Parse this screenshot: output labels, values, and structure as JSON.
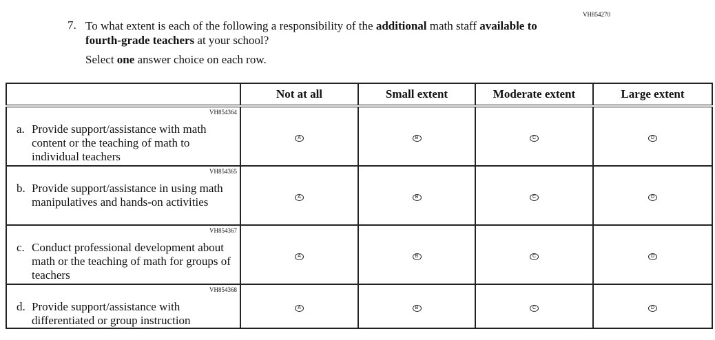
{
  "question": {
    "id": "VH854270",
    "number": "7.",
    "text_parts": [
      "To what extent is each of the following a responsibility of the ",
      "additional",
      " math staff ",
      "available to fourth-grade teachers",
      " at your school?"
    ],
    "instruction_parts": [
      "Select ",
      "one",
      " answer choice on each row."
    ]
  },
  "columns": [
    "Not at all",
    "Small extent",
    "Moderate extent",
    "Large extent"
  ],
  "options": [
    "A",
    "B",
    "C",
    "D"
  ],
  "items": [
    {
      "code": "VH854364",
      "letter": "a.",
      "text": "Provide support/assistance with math content or the teaching of math to individual teachers"
    },
    {
      "code": "VH854365",
      "letter": "b.",
      "text": "Provide support/assistance in using math manipulatives and hands-on activities"
    },
    {
      "code": "VH854367",
      "letter": "c.",
      "text": "Conduct professional development about math or the teaching of math for groups of teachers"
    },
    {
      "code": "VH854368",
      "letter": "d.",
      "text": "Provide support/assistance with differentiated or group instruction"
    }
  ]
}
